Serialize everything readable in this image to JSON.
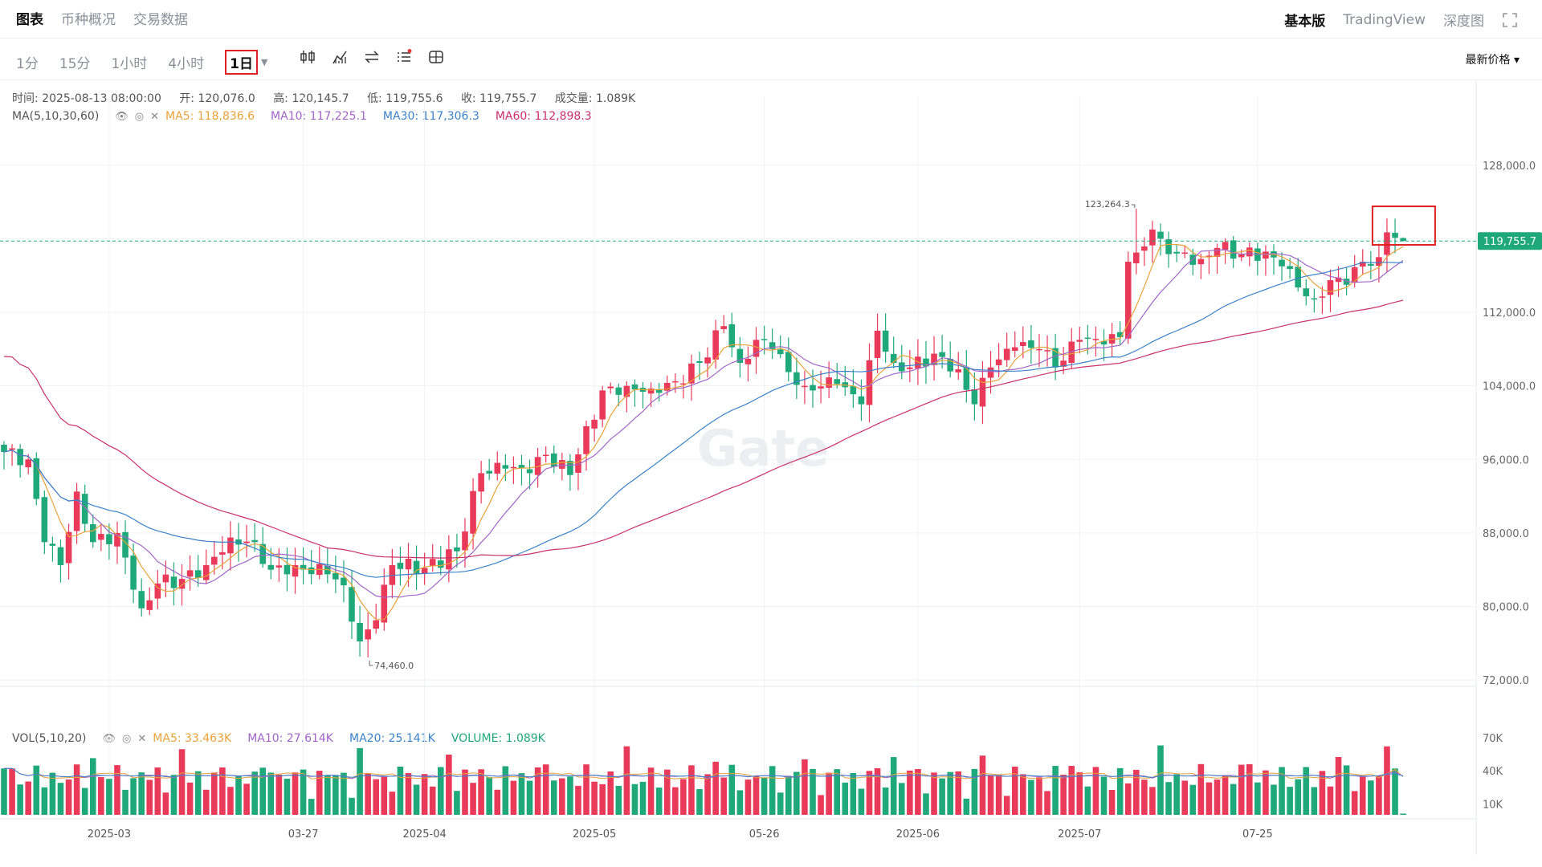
{
  "top_tabs": {
    "items": [
      "图表",
      "币种概况",
      "交易数据"
    ],
    "active": 0
  },
  "view_tabs": {
    "items": [
      "基本版",
      "TradingView",
      "深度图"
    ],
    "active": 0
  },
  "intervals": {
    "items": [
      "1分",
      "15分",
      "1小时",
      "4小时"
    ],
    "selected": "1日"
  },
  "price_mode": "最新价格 ▾",
  "ohlc": {
    "time": "时间: 2025-08-13 08:00:00",
    "open": "开: 120,076.0",
    "high": "高: 120,145.7",
    "low": "低: 119,755.6",
    "close": "收: 119,755.7",
    "volume": "成交量: 1.089K"
  },
  "ma_legend": {
    "label": "MA(5,10,30,60)",
    "ma5": "MA5: 118,836.6",
    "ma10": "MA10: 117,225.1",
    "ma30": "MA30: 117,306.3",
    "ma60": "MA60: 112,898.3"
  },
  "vol_legend": {
    "label": "VOL(5,10,20)",
    "ma5": "MA5: 33.463K",
    "ma10": "MA10: 27.614K",
    "ma20": "MA20: 25.141K",
    "volume": "VOLUME: 1.089K"
  },
  "colors": {
    "up": "#ea3a5a",
    "down": "#1fa97a",
    "ma5": "#e8a23a",
    "ma10": "#a065c7",
    "ma30": "#3b82c8",
    "ma60": "#c8306a",
    "current": "#1fa97a",
    "highlight": "#e02020"
  },
  "watermark": "Gate",
  "chart_data": {
    "type": "candlestick",
    "current_price": 119755.7,
    "current_price_label": "119,755.7",
    "max_label": "123,264.3",
    "max_value": 123264.3,
    "min_label": "74,460.0",
    "min_value": 74460.0,
    "price_axis": {
      "ticks": [
        128000,
        120000,
        112000,
        104000,
        96000,
        88000,
        80000,
        72000
      ],
      "labels": [
        "128,000.0",
        "112,000.0",
        "104,000.0",
        "96,000.0",
        "88,000.0",
        "80,000.0",
        "72,000.0"
      ],
      "label_values": [
        128000,
        112000,
        104000,
        96000,
        88000,
        80000,
        72000
      ],
      "range": [
        70000,
        132000
      ]
    },
    "volume_axis": {
      "labels": [
        "70K",
        "40K",
        "10K"
      ],
      "values": [
        70000,
        40000,
        10000
      ],
      "range": [
        0,
        80000
      ]
    },
    "x_labels": [
      {
        "label": "2025-03",
        "index": 13
      },
      {
        "label": "03-27",
        "index": 37
      },
      {
        "label": "2025-04",
        "index": 52
      },
      {
        "label": "2025-05",
        "index": 73
      },
      {
        "label": "05-26",
        "index": 94
      },
      {
        "label": "2025-06",
        "index": 113
      },
      {
        "label": "2025-07",
        "index": 133
      },
      {
        "label": "07-25",
        "index": 155
      }
    ],
    "anchors": [
      [
        0,
        96800
      ],
      [
        3,
        96000
      ],
      [
        5,
        87000
      ],
      [
        7,
        84500
      ],
      [
        9,
        92500
      ],
      [
        11,
        87000
      ],
      [
        14,
        88000
      ],
      [
        17,
        79800
      ],
      [
        19,
        82500
      ],
      [
        22,
        83000
      ],
      [
        25,
        84500
      ],
      [
        28,
        87500
      ],
      [
        31,
        87000
      ],
      [
        33,
        84000
      ],
      [
        36,
        84500
      ],
      [
        40,
        83500
      ],
      [
        42,
        82300
      ],
      [
        44,
        76200
      ],
      [
        46,
        78500
      ],
      [
        48,
        84500
      ],
      [
        52,
        84200
      ],
      [
        56,
        86000
      ],
      [
        59,
        94500
      ],
      [
        62,
        95000
      ],
      [
        65,
        94500
      ],
      [
        67,
        96500
      ],
      [
        70,
        94300
      ],
      [
        74,
        103500
      ],
      [
        77,
        104000
      ],
      [
        80,
        103700
      ],
      [
        83,
        104500
      ],
      [
        86,
        106500
      ],
      [
        89,
        110500
      ],
      [
        91,
        106500
      ],
      [
        93,
        109000
      ],
      [
        95,
        108000
      ],
      [
        97,
        105500
      ],
      [
        99,
        104000
      ],
      [
        103,
        104200
      ],
      [
        106,
        102000
      ],
      [
        108,
        110000
      ],
      [
        110,
        106500
      ],
      [
        112,
        106000
      ],
      [
        115,
        107500
      ],
      [
        118,
        105800
      ],
      [
        120,
        102000
      ],
      [
        122,
        106000
      ],
      [
        125,
        108200
      ],
      [
        128,
        108000
      ],
      [
        130,
        106000
      ],
      [
        133,
        109000
      ],
      [
        136,
        108500
      ],
      [
        138,
        109300
      ],
      [
        139,
        117500
      ],
      [
        140,
        118500
      ],
      [
        142,
        121000
      ],
      [
        143,
        120000
      ],
      [
        145,
        118400
      ],
      [
        148,
        117800
      ],
      [
        150,
        119000
      ],
      [
        153,
        118300
      ],
      [
        156,
        118600
      ],
      [
        158,
        117000
      ],
      [
        160,
        114700
      ],
      [
        162,
        113500
      ],
      [
        164,
        115500
      ],
      [
        166,
        115000
      ],
      [
        168,
        117500
      ],
      [
        170,
        118000
      ],
      [
        171,
        120700
      ],
      [
        172,
        120100
      ],
      [
        173,
        119755.7
      ]
    ]
  }
}
